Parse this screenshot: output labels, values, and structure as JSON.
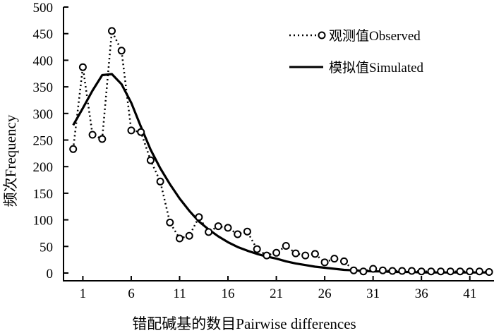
{
  "chart_data": {
    "type": "line",
    "title": "",
    "xlabel": "错配碱基的数目Pairwise differences",
    "ylabel": "频次Frequency",
    "xlim": [
      -1,
      43.5
    ],
    "ylim": [
      0,
      500
    ],
    "xticks": [
      1,
      6,
      11,
      16,
      21,
      26,
      31,
      36,
      41
    ],
    "yticks": [
      0,
      50,
      100,
      150,
      200,
      250,
      300,
      350,
      400,
      450,
      500
    ],
    "legend_position": "top-right",
    "series": [
      {
        "name": "观测值Observed",
        "style": "dotted-circles",
        "color": "#000000",
        "x": [
          0,
          1,
          2,
          3,
          4,
          5,
          6,
          7,
          8,
          9,
          10,
          11,
          12,
          13,
          14,
          15,
          16,
          17,
          18,
          19,
          20,
          21,
          22,
          23,
          24,
          25,
          26,
          27,
          28,
          29,
          30,
          31,
          32,
          33,
          34,
          35,
          36,
          37,
          38,
          39,
          40,
          41,
          42,
          43
        ],
        "values": [
          233,
          387,
          260,
          252,
          455,
          418,
          268,
          265,
          212,
          172,
          95,
          65,
          70,
          105,
          77,
          88,
          85,
          73,
          78,
          45,
          33,
          38,
          51,
          37,
          33,
          36,
          20,
          27,
          22,
          5,
          3,
          8,
          5,
          4,
          4,
          4,
          3,
          3,
          3,
          3,
          3,
          3,
          3,
          2
        ]
      },
      {
        "name": "模拟值Simulated",
        "style": "solid",
        "color": "#000000",
        "x": [
          0,
          1,
          2,
          3,
          4,
          5,
          6,
          7,
          8,
          9,
          10,
          11,
          12,
          13,
          14,
          15,
          16,
          17,
          18,
          19,
          20,
          21,
          22,
          23,
          24,
          25,
          26,
          27,
          28,
          29,
          30,
          31,
          32,
          33,
          34,
          35,
          36,
          37,
          38,
          39,
          40,
          41,
          42,
          43
        ],
        "values": [
          278,
          310,
          343,
          372,
          374,
          355,
          320,
          275,
          232,
          197,
          167,
          140,
          117,
          97,
          82,
          69,
          58,
          49,
          42,
          36,
          31,
          27,
          22,
          18,
          15,
          12,
          10,
          8,
          6,
          5,
          4,
          3,
          3,
          2,
          2,
          2,
          1,
          1,
          1,
          1,
          1,
          1,
          1,
          1
        ]
      }
    ]
  }
}
